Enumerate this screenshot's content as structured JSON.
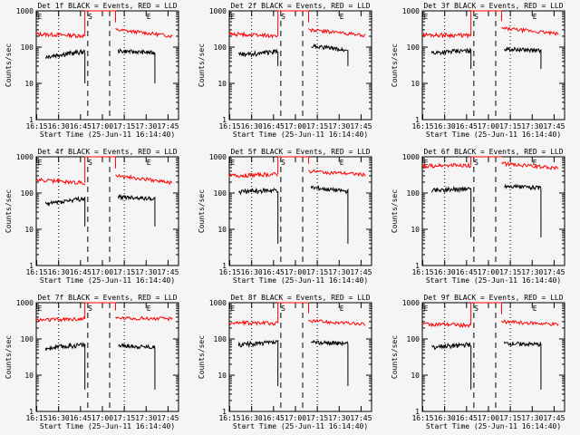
{
  "chart_data": {
    "type": "line",
    "panels": [
      {
        "title": "Det 1f BLACK = Events, RED = LLD",
        "red": {
          "pre": [
            230,
            205
          ],
          "post": [
            300,
            200
          ]
        },
        "black": {
          "pre": [
            55,
            75
          ],
          "post": [
            78,
            70
          ],
          "drop": 10
        }
      },
      {
        "title": "Det 2f BLACK = Events, RED = LLD",
        "red": {
          "pre": [
            230,
            205
          ],
          "post": [
            300,
            210
          ]
        },
        "black": {
          "pre": [
            60,
            75
          ],
          "post": [
            110,
            80
          ],
          "drop": 30
        }
      },
      {
        "title": "Det 3f BLACK = Events, RED = LLD",
        "red": {
          "pre": [
            220,
            210
          ],
          "post": [
            330,
            230
          ]
        },
        "black": {
          "pre": [
            70,
            80
          ],
          "post": [
            90,
            80
          ],
          "drop": 25
        }
      },
      {
        "title": "Det 4f BLACK = Events, RED = LLD",
        "red": {
          "pre": [
            230,
            190
          ],
          "post": [
            300,
            190
          ]
        },
        "black": {
          "pre": [
            50,
            70
          ],
          "post": [
            78,
            70
          ],
          "drop": 12
        }
      },
      {
        "title": "Det 5f BLACK = Events, RED = LLD",
        "red": {
          "pre": [
            300,
            330
          ],
          "post": [
            400,
            320
          ]
        },
        "black": {
          "pre": [
            110,
            120
          ],
          "post": [
            140,
            110
          ],
          "drop": 4
        }
      },
      {
        "title": "Det 6f BLACK = Events, RED = LLD",
        "red": {
          "pre": [
            560,
            580
          ],
          "post": [
            650,
            480
          ]
        },
        "black": {
          "pre": [
            120,
            130
          ],
          "post": [
            155,
            140
          ],
          "drop": 6
        }
      },
      {
        "title": "Det 7f BLACK = Events, RED = LLD",
        "red": {
          "pre": [
            330,
            360
          ],
          "post": [
            380,
            360
          ]
        },
        "black": {
          "pre": [
            55,
            70
          ],
          "post": [
            65,
            60
          ],
          "drop": 4
        }
      },
      {
        "title": "Det 8f BLACK = Events, RED = LLD",
        "red": {
          "pre": [
            280,
            270
          ],
          "post": [
            320,
            250
          ]
        },
        "black": {
          "pre": [
            70,
            80
          ],
          "post": [
            80,
            75
          ],
          "drop": 5
        }
      },
      {
        "title": "Det 9f BLACK = Events, RED = LLD",
        "red": {
          "pre": [
            260,
            240
          ],
          "post": [
            300,
            250
          ]
        },
        "black": {
          "pre": [
            60,
            70
          ],
          "post": [
            75,
            70
          ],
          "drop": 4
        }
      }
    ],
    "ylabel": "Counts/sec",
    "xlabel": "Start Time (25-Jun-11 16:14:40)",
    "yticks": [
      "1",
      "10",
      "100",
      "1000"
    ],
    "xticks": [
      "16:15",
      "16:30",
      "16:45",
      "17:00",
      "17:15",
      "17:30",
      "17:45"
    ],
    "event_markers": [
      "E",
      "S",
      "E"
    ],
    "series": [
      "BLACK = Events",
      "RED = LLD"
    ],
    "colors": {
      "events": "#000000",
      "lld": "#ff0000",
      "bg": "#f5f5f5"
    },
    "ylim": [
      1,
      1000
    ],
    "yscale": "log"
  }
}
